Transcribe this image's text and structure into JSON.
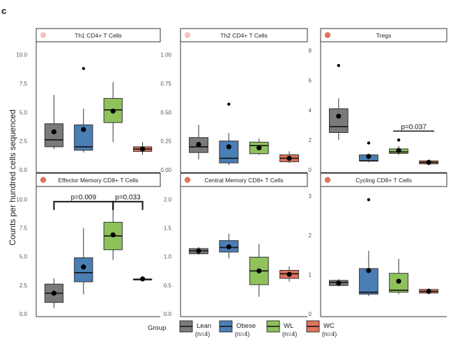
{
  "figure": {
    "panel_letter": "c",
    "ylabel": "Counts per hundred cells sequenced",
    "legend_title": "Group"
  },
  "legend": [
    {
      "label": "Lean",
      "n": "(n=4)",
      "color": "#7a7a7a"
    },
    {
      "label": "Obese",
      "n": "(n=4)",
      "color": "#4a7fb5"
    },
    {
      "label": "WL",
      "n": "(n=4)",
      "color": "#8fc25b"
    },
    {
      "label": "WC",
      "n": "(n=4)",
      "color": "#e0735a"
    }
  ],
  "chart_data": [
    {
      "type": "box",
      "title": "Th1 CD4+ T Cells",
      "title_dot_color": "#f2c4b8",
      "ylim": [
        0,
        11
      ],
      "yticks": [
        0.0,
        2.5,
        5.0,
        7.5,
        10.0
      ],
      "tick_labels": [
        "0.0",
        "2.5",
        "5.0",
        "7.5",
        "10.0"
      ],
      "groups": [
        {
          "group": "Lean",
          "lo": 1.8,
          "q1": 2.0,
          "med": 2.6,
          "q3": 4.0,
          "hi": 6.5,
          "mean": 3.3,
          "outliers": []
        },
        {
          "group": "Obese",
          "lo": 1.5,
          "q1": 1.7,
          "med": 2.0,
          "q3": 3.9,
          "hi": 5.3,
          "mean": 3.5,
          "outliers": [
            8.8
          ]
        },
        {
          "group": "WL",
          "lo": 2.4,
          "q1": 4.1,
          "med": 5.2,
          "q3": 6.2,
          "hi": 7.6,
          "mean": 5.1,
          "outliers": []
        },
        {
          "group": "WC",
          "lo": 1.3,
          "q1": 1.6,
          "med": 1.8,
          "q3": 2.0,
          "hi": 2.4,
          "mean": 1.8,
          "outliers": []
        }
      ],
      "brackets": []
    },
    {
      "type": "box",
      "title": "Th2 CD4+ T Cells",
      "title_dot_color": "#f2c4b8",
      "ylim": [
        0,
        1.1
      ],
      "yticks": [
        0.0,
        0.25,
        0.5,
        0.75,
        1.0
      ],
      "tick_labels": [
        "0.00",
        "0.25",
        "0.50",
        "0.75",
        "1.00"
      ],
      "groups": [
        {
          "group": "Lean",
          "lo": 0.09,
          "q1": 0.15,
          "med": 0.2,
          "q3": 0.28,
          "hi": 0.39,
          "mean": 0.22,
          "outliers": []
        },
        {
          "group": "Obese",
          "lo": 0.04,
          "q1": 0.06,
          "med": 0.1,
          "q3": 0.25,
          "hi": 0.32,
          "mean": 0.2,
          "outliers": [
            0.57
          ]
        },
        {
          "group": "WL",
          "lo": 0.13,
          "q1": 0.14,
          "med": 0.21,
          "q3": 0.24,
          "hi": 0.27,
          "mean": 0.19,
          "outliers": []
        },
        {
          "group": "WC",
          "lo": 0.06,
          "q1": 0.07,
          "med": 0.1,
          "q3": 0.13,
          "hi": 0.16,
          "mean": 0.1,
          "outliers": []
        }
      ],
      "brackets": []
    },
    {
      "type": "box",
      "title": "Tregs",
      "title_dot_color": "#e0735a",
      "ylim": [
        0,
        8.5
      ],
      "yticks": [
        0,
        2,
        4,
        6,
        8
      ],
      "tick_labels": [
        "0",
        "2",
        "4",
        "6",
        "8"
      ],
      "groups": [
        {
          "group": "Lean",
          "lo": 2.0,
          "q1": 2.5,
          "med": 2.9,
          "q3": 4.1,
          "hi": 4.8,
          "mean": 3.6,
          "outliers": [
            7.0
          ]
        },
        {
          "group": "Obese",
          "lo": 0.5,
          "q1": 0.6,
          "med": 0.6,
          "q3": 1.0,
          "hi": 1.0,
          "mean": 0.9,
          "outliers": [
            1.8
          ]
        },
        {
          "group": "WL",
          "lo": 1.0,
          "q1": 1.1,
          "med": 1.2,
          "q3": 1.4,
          "hi": 1.6,
          "mean": 1.3,
          "outliers": [
            2.0
          ]
        },
        {
          "group": "WC",
          "lo": 0.3,
          "q1": 0.4,
          "med": 0.5,
          "q3": 0.6,
          "hi": 0.7,
          "mean": 0.5,
          "outliers": []
        }
      ],
      "brackets": [
        {
          "from": 2,
          "to": 3,
          "y": 2.6,
          "label": "p=0.037",
          "style": "line"
        }
      ]
    },
    {
      "type": "box",
      "title": "Effector Memory CD8+ T Cells",
      "title_dot_color": "#e0735a",
      "ylim": [
        0,
        11
      ],
      "yticks": [
        0.0,
        2.5,
        5.0,
        7.5,
        10.0
      ],
      "tick_labels": [
        "0.0",
        "2.5",
        "5.0",
        "7.5",
        "10.0"
      ],
      "groups": [
        {
          "group": "Lean",
          "lo": 0.5,
          "q1": 1.0,
          "med": 1.8,
          "q3": 2.6,
          "hi": 3.1,
          "mean": 1.8,
          "outliers": []
        },
        {
          "group": "Obese",
          "lo": 1.7,
          "q1": 2.8,
          "med": 3.6,
          "q3": 4.9,
          "hi": 7.5,
          "mean": 4.1,
          "outliers": []
        },
        {
          "group": "WL",
          "lo": 4.7,
          "q1": 5.6,
          "med": 6.8,
          "q3": 8.0,
          "hi": 9.4,
          "mean": 6.9,
          "outliers": []
        },
        {
          "group": "WC",
          "lo": 2.9,
          "q1": 3.0,
          "med": 3.0,
          "q3": 3.05,
          "hi": 3.3,
          "mean": 3.05,
          "outliers": []
        }
      ],
      "brackets": [
        {
          "from": 0,
          "to": 2,
          "y": 9.8,
          "label": "p=0.009",
          "style": "bracket"
        },
        {
          "from": 2,
          "to": 3,
          "y": 9.8,
          "label": "p=0.033",
          "style": "bracket"
        }
      ]
    },
    {
      "type": "box",
      "title": "Central Memory CD8+ T Cells",
      "title_dot_color": "#e0735a",
      "ylim": [
        0,
        2.2
      ],
      "yticks": [
        0.0,
        0.5,
        1.0,
        1.5,
        2.0
      ],
      "tick_labels": [
        "0.0",
        "0.5",
        "1.0",
        "1.5",
        "2.0"
      ],
      "groups": [
        {
          "group": "Lean",
          "lo": 1.03,
          "q1": 1.05,
          "med": 1.1,
          "q3": 1.14,
          "hi": 1.17,
          "mean": 1.1,
          "outliers": []
        },
        {
          "group": "Obese",
          "lo": 0.97,
          "q1": 1.08,
          "med": 1.16,
          "q3": 1.28,
          "hi": 1.4,
          "mean": 1.17,
          "outliers": []
        },
        {
          "group": "WL",
          "lo": 0.3,
          "q1": 0.51,
          "med": 0.75,
          "q3": 0.99,
          "hi": 1.22,
          "mean": 0.75,
          "outliers": []
        },
        {
          "group": "WC",
          "lo": 0.56,
          "q1": 0.62,
          "med": 0.7,
          "q3": 0.76,
          "hi": 0.83,
          "mean": 0.69,
          "outliers": []
        }
      ],
      "brackets": []
    },
    {
      "type": "box",
      "title": "Cycling CD8+ T Cells",
      "title_dot_color": "#e0735a",
      "ylim": [
        0,
        3.2
      ],
      "yticks": [
        0,
        1,
        2,
        3
      ],
      "tick_labels": [
        "0",
        "1",
        "2",
        "3"
      ],
      "groups": [
        {
          "group": "Lean",
          "lo": 0.7,
          "q1": 0.72,
          "med": 0.8,
          "q3": 0.85,
          "hi": 0.88,
          "mean": 0.78,
          "outliers": []
        },
        {
          "group": "Obese",
          "lo": 0.45,
          "q1": 0.5,
          "med": 0.55,
          "q3": 1.15,
          "hi": 1.6,
          "mean": 1.1,
          "outliers": [
            2.9
          ]
        },
        {
          "group": "WL",
          "lo": 0.5,
          "q1": 0.55,
          "med": 0.6,
          "q3": 1.03,
          "hi": 1.4,
          "mean": 0.83,
          "outliers": []
        },
        {
          "group": "WC",
          "lo": 0.5,
          "q1": 0.53,
          "med": 0.57,
          "q3": 0.62,
          "hi": 0.65,
          "mean": 0.57,
          "outliers": []
        }
      ],
      "brackets": []
    }
  ]
}
